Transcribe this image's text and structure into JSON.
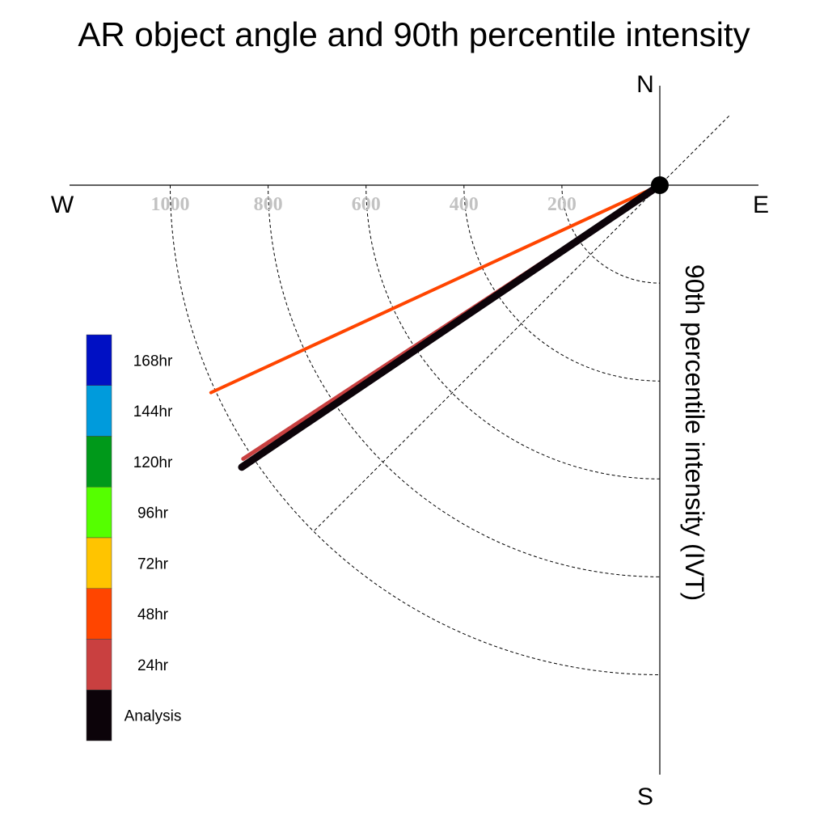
{
  "chart_data": {
    "type": "polar-vector",
    "title": "AR object angle and 90th percentile intensity",
    "radial_label": "90th percentile intensity (IVT)",
    "directions": {
      "north": "N",
      "south": "S",
      "east": "E",
      "west": "W"
    },
    "radial_ticks": [
      200,
      400,
      600,
      800,
      1000
    ],
    "radial_tick_labels": [
      "200",
      "400",
      "600",
      "800",
      "1000"
    ],
    "diagonal_guides_deg": [
      45,
      225
    ],
    "grid": true,
    "legend_placement": "left",
    "series": [
      {
        "name": "48hr",
        "color": "#ff4500",
        "angle_from_east_deg": 204.8,
        "intensity": 1010
      },
      {
        "name": "24hr",
        "color": "#c94040",
        "angle_from_east_deg": 213.3,
        "intensity": 1018
      },
      {
        "name": "Analysis",
        "color": "#0c0309",
        "angle_from_east_deg": 214.0,
        "intensity": 1030
      }
    ],
    "legend": [
      {
        "label": "168hr",
        "color": "#0010c4"
      },
      {
        "label": "144hr",
        "color": "#009bdc"
      },
      {
        "label": "120hr",
        "color": "#00991a"
      },
      {
        "label": "96hr",
        "color": "#55ff00"
      },
      {
        "label": "72hr",
        "color": "#ffc400"
      },
      {
        "label": "48hr",
        "color": "#ff4500"
      },
      {
        "label": "24hr",
        "color": "#c94040"
      },
      {
        "label": "Analysis",
        "color": "#0c0309"
      }
    ]
  }
}
